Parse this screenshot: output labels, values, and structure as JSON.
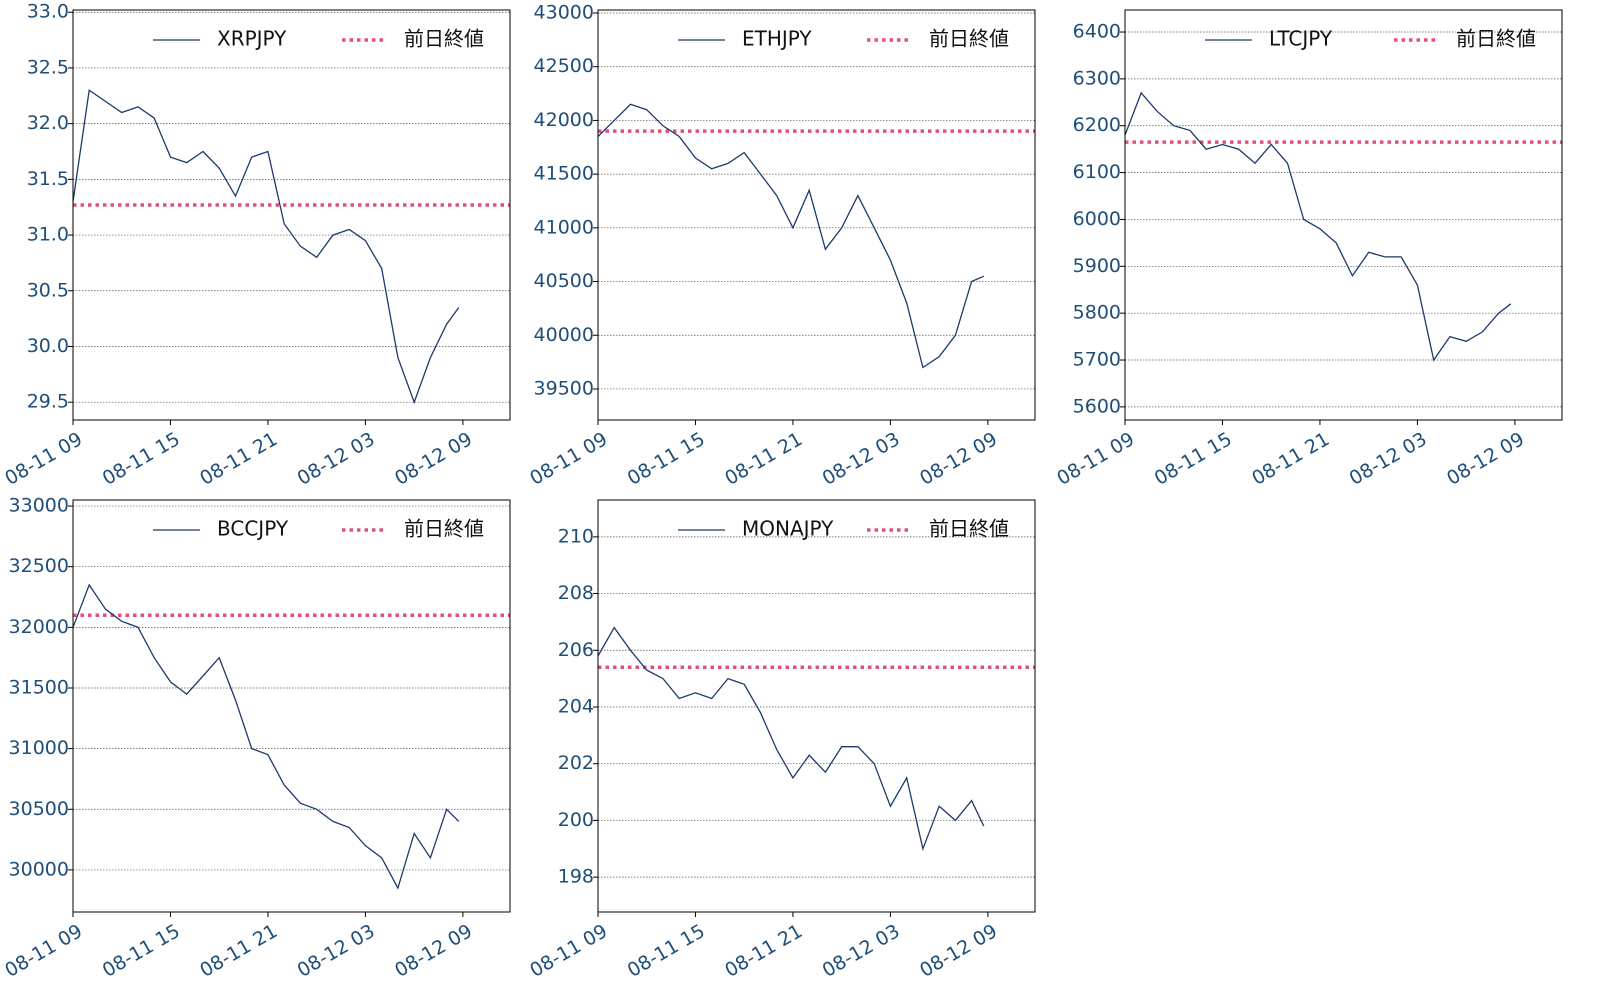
{
  "chart_data": [
    {
      "type": "line",
      "series": [
        {
          "name": "XRPJPY",
          "color": "#1b3a6b",
          "x": [
            "08-11 09:00",
            "08-11 10:00",
            "08-11 11:00",
            "08-11 12:00",
            "08-11 13:00",
            "08-11 14:00",
            "08-11 15:00",
            "08-11 16:00",
            "08-11 17:00",
            "08-11 18:00",
            "08-11 19:00",
            "08-11 20:00",
            "08-11 21:00",
            "08-11 22:00",
            "08-11 23:00",
            "08-12 00:00",
            "08-12 01:00",
            "08-12 02:00",
            "08-12 03:00",
            "08-12 04:00",
            "08-12 05:00",
            "08-12 06:00",
            "08-12 07:00",
            "08-12 08:00",
            "08-12 08:45"
          ],
          "values": [
            31.3,
            32.3,
            32.2,
            32.1,
            32.15,
            32.05,
            31.7,
            31.65,
            31.75,
            31.6,
            31.35,
            31.7,
            31.75,
            31.1,
            30.9,
            30.8,
            31.0,
            31.05,
            30.95,
            30.7,
            29.9,
            29.5,
            29.9,
            30.2,
            30.35
          ]
        }
      ],
      "reference": {
        "name": "前日終値",
        "value": 31.27,
        "color": "#e0507a"
      },
      "xlim": [
        "08-11 09:00",
        "08-12 11:54"
      ],
      "xticks": [
        "08-11 09",
        "08-11 15",
        "08-11 21",
        "08-12 03",
        "08-12 09"
      ],
      "ylim": [
        29.34,
        33.02
      ],
      "yticks": [
        29.5,
        {
          "value": 30,
          "label": "30.0"
        },
        30.5,
        {
          "value": 31,
          "label": "31.0"
        },
        31.5,
        {
          "value": 32,
          "label": "32.0"
        },
        32.5,
        {
          "value": 33,
          "label": "33.0"
        }
      ],
      "grid": "y"
    },
    {
      "type": "line",
      "series": [
        {
          "name": "ETHJPY",
          "color": "#1b3a6b",
          "x": [
            "08-11 09:00",
            "08-11 10:00",
            "08-11 11:00",
            "08-11 12:00",
            "08-11 13:00",
            "08-11 14:00",
            "08-11 15:00",
            "08-11 16:00",
            "08-11 17:00",
            "08-11 18:00",
            "08-11 19:00",
            "08-11 20:00",
            "08-11 21:00",
            "08-11 22:00",
            "08-11 23:00",
            "08-12 00:00",
            "08-12 01:00",
            "08-12 02:00",
            "08-12 03:00",
            "08-12 04:00",
            "08-12 05:00",
            "08-12 06:00",
            "08-12 07:00",
            "08-12 08:00",
            "08-12 08:45"
          ],
          "values": [
            41850,
            42000,
            42150,
            42100,
            41950,
            41850,
            41650,
            41550,
            41600,
            41700,
            41500,
            41300,
            41000,
            41350,
            40800,
            41000,
            41300,
            41000,
            40700,
            40300,
            39700,
            39800,
            40000,
            40500,
            40550
          ]
        }
      ],
      "reference": {
        "name": "前日終値",
        "value": 41900,
        "color": "#e0507a"
      },
      "xlim": [
        "08-11 09:00",
        "08-12 11:54"
      ],
      "xticks": [
        "08-11 09",
        "08-11 15",
        "08-11 21",
        "08-12 03",
        "08-12 09"
      ],
      "ylim": [
        39211,
        43028
      ],
      "yticks": [
        39500,
        40000,
        40500,
        41000,
        41500,
        42000,
        42500,
        43000
      ],
      "grid": "y"
    },
    {
      "type": "line",
      "series": [
        {
          "name": "LTCJPY",
          "color": "#1b3a6b",
          "x": [
            "08-11 09:00",
            "08-11 10:00",
            "08-11 11:00",
            "08-11 12:00",
            "08-11 13:00",
            "08-11 14:00",
            "08-11 15:00",
            "08-11 16:00",
            "08-11 17:00",
            "08-11 18:00",
            "08-11 19:00",
            "08-11 20:00",
            "08-11 21:00",
            "08-11 22:00",
            "08-11 23:00",
            "08-12 00:00",
            "08-12 01:00",
            "08-12 02:00",
            "08-12 03:00",
            "08-12 04:00",
            "08-12 05:00",
            "08-12 06:00",
            "08-12 07:00",
            "08-12 08:00",
            "08-12 08:45"
          ],
          "values": [
            6180,
            6270,
            6230,
            6200,
            6190,
            6150,
            6160,
            6150,
            6120,
            6160,
            6120,
            6000,
            5980,
            5950,
            5880,
            5930,
            5920,
            5920,
            5860,
            5700,
            5750,
            5740,
            5760,
            5800,
            5820
          ]
        }
      ],
      "reference": {
        "name": "前日終値",
        "value": 6165,
        "color": "#e0507a"
      },
      "xlim": [
        "08-11 09:00",
        "08-12 11:54"
      ],
      "xticks": [
        "08-11 09",
        "08-11 15",
        "08-11 21",
        "08-12 03",
        "08-12 09"
      ],
      "ylim": [
        5572,
        6447
      ],
      "yticks": [
        5600,
        5700,
        5800,
        5900,
        6000,
        6100,
        6200,
        6300,
        6400
      ],
      "grid": "y"
    },
    {
      "type": "line",
      "series": [
        {
          "name": "BCCJPY",
          "color": "#1b3a6b",
          "x": [
            "08-11 09:00",
            "08-11 10:00",
            "08-11 11:00",
            "08-11 12:00",
            "08-11 13:00",
            "08-11 14:00",
            "08-11 15:00",
            "08-11 16:00",
            "08-11 17:00",
            "08-11 18:00",
            "08-11 19:00",
            "08-11 20:00",
            "08-11 21:00",
            "08-11 22:00",
            "08-11 23:00",
            "08-12 00:00",
            "08-12 01:00",
            "08-12 02:00",
            "08-12 03:00",
            "08-12 04:00",
            "08-12 05:00",
            "08-12 06:00",
            "08-12 07:00",
            "08-12 08:00",
            "08-12 08:45"
          ],
          "values": [
            32000,
            32350,
            32150,
            32050,
            32000,
            31750,
            31550,
            31450,
            31600,
            31750,
            31400,
            31000,
            30950,
            30700,
            30550,
            30500,
            30400,
            30350,
            30200,
            30100,
            29850,
            30300,
            30100,
            30500,
            30400
          ]
        }
      ],
      "reference": {
        "name": "前日終値",
        "value": 32100,
        "color": "#e0507a"
      },
      "xlim": [
        "08-11 09:00",
        "08-12 11:54"
      ],
      "xticks": [
        "08-11 09",
        "08-11 15",
        "08-11 21",
        "08-12 03",
        "08-12 09"
      ],
      "ylim": [
        29653,
        33050
      ],
      "yticks": [
        30000,
        30500,
        31000,
        31500,
        32000,
        32500,
        33000
      ],
      "grid": "y"
    },
    {
      "type": "line",
      "series": [
        {
          "name": "MONAJPY",
          "color": "#1b3a6b",
          "x": [
            "08-11 09:00",
            "08-11 10:00",
            "08-11 11:00",
            "08-11 12:00",
            "08-11 13:00",
            "08-11 14:00",
            "08-11 15:00",
            "08-11 16:00",
            "08-11 17:00",
            "08-11 18:00",
            "08-11 19:00",
            "08-11 20:00",
            "08-11 21:00",
            "08-11 22:00",
            "08-11 23:00",
            "08-12 00:00",
            "08-12 01:00",
            "08-12 02:00",
            "08-12 03:00",
            "08-12 04:00",
            "08-12 05:00",
            "08-12 06:00",
            "08-12 07:00",
            "08-12 08:00",
            "08-12 08:45"
          ],
          "values": [
            205.8,
            206.8,
            206.0,
            205.3,
            205.0,
            204.3,
            204.5,
            204.3,
            205.0,
            204.8,
            203.8,
            202.5,
            201.5,
            202.3,
            201.7,
            202.6,
            202.6,
            202.0,
            200.5,
            201.5,
            199.0,
            200.5,
            200.0,
            200.7,
            199.8
          ]
        }
      ],
      "reference": {
        "name": "前日終値",
        "value": 205.4,
        "color": "#e0507a"
      },
      "xlim": [
        "08-11 09:00",
        "08-12 11:54"
      ],
      "xticks": [
        "08-11 09",
        "08-11 15",
        "08-11 21",
        "08-12 03",
        "08-12 09"
      ],
      "ylim": [
        196.77,
        211.3
      ],
      "yticks": [
        198,
        200,
        202,
        204,
        206,
        208,
        210
      ],
      "grid": "y"
    }
  ]
}
